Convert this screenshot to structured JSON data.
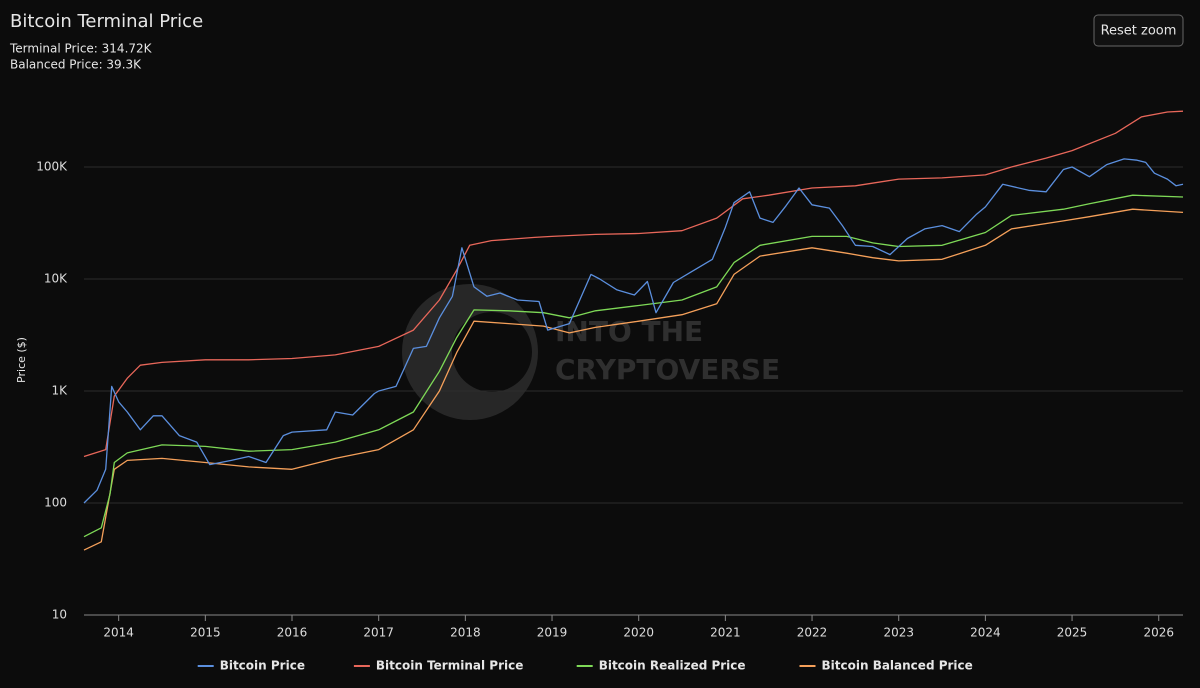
{
  "chart_data": {
    "type": "line",
    "title": "Bitcoin Terminal Price",
    "stats": [
      "Terminal Price: 314.72K",
      "Balanced Price: 39.3K"
    ],
    "button": "Reset zoom",
    "watermark": [
      "INTO THE",
      "CRYPTOVERSE"
    ],
    "y_label": "Price ($)",
    "yscale": "log",
    "grid": true,
    "legend": "bottom",
    "xlim": [
      2013.6,
      2026.28
    ],
    "xticks": [
      2014,
      2015,
      2016,
      2017,
      2018,
      2019,
      2020,
      2021,
      2022,
      2023,
      2024,
      2025,
      2026
    ],
    "ylim": [
      10,
      1000000
    ],
    "yticks": [
      10,
      100,
      {
        "value": 1000,
        "label": "1K"
      },
      {
        "value": 10000,
        "label": "10K"
      },
      {
        "value": 100000,
        "label": "100K"
      }
    ],
    "series": [
      {
        "name": "Bitcoin Price",
        "color": "#5b8fde",
        "x": [
          2013.6,
          2013.75,
          2013.85,
          2013.92,
          2014.0,
          2014.1,
          2014.25,
          2014.4,
          2014.5,
          2014.7,
          2014.9,
          2015.05,
          2015.3,
          2015.5,
          2015.7,
          2015.9,
          2016.0,
          2016.4,
          2016.5,
          2016.7,
          2016.95,
          2017.0,
          2017.2,
          2017.4,
          2017.55,
          2017.7,
          2017.85,
          2017.96,
          2018.1,
          2018.25,
          2018.4,
          2018.6,
          2018.85,
          2018.95,
          2019.2,
          2019.45,
          2019.55,
          2019.75,
          2019.95,
          2020.1,
          2020.2,
          2020.4,
          2020.6,
          2020.85,
          2021.0,
          2021.1,
          2021.28,
          2021.4,
          2021.55,
          2021.7,
          2021.85,
          2022.0,
          2022.2,
          2022.35,
          2022.5,
          2022.7,
          2022.9,
          2023.1,
          2023.3,
          2023.5,
          2023.7,
          2023.9,
          2024.0,
          2024.2,
          2024.5,
          2024.7,
          2024.9,
          2025.0,
          2025.2,
          2025.4,
          2025.6,
          2025.75,
          2025.85,
          2025.95,
          2026.1,
          2026.2,
          2026.28
        ],
        "values": [
          100,
          130,
          200,
          1100,
          800,
          650,
          450,
          600,
          600,
          400,
          350,
          220,
          240,
          260,
          230,
          400,
          430,
          450,
          650,
          610,
          950,
          1000,
          1100,
          2400,
          2500,
          4500,
          7000,
          19000,
          8500,
          7000,
          7500,
          6500,
          6300,
          3500,
          4000,
          11000,
          10000,
          8000,
          7200,
          9500,
          5000,
          9300,
          11500,
          15000,
          29000,
          48000,
          60000,
          35000,
          32000,
          45000,
          65000,
          46000,
          43000,
          30000,
          20000,
          19500,
          16500,
          23000,
          28000,
          30000,
          26500,
          38000,
          44000,
          70000,
          62000,
          60000,
          95000,
          100000,
          82000,
          105000,
          118000,
          115000,
          110000,
          88000,
          78000,
          68000,
          70000
        ]
      },
      {
        "name": "Bitcoin Terminal Price",
        "color": "#e8675a",
        "x": [
          2013.6,
          2013.85,
          2013.95,
          2014.1,
          2014.25,
          2014.5,
          2015.0,
          2015.5,
          2016.0,
          2016.5,
          2017.0,
          2017.4,
          2017.7,
          2017.9,
          2018.05,
          2018.3,
          2018.8,
          2019.0,
          2019.5,
          2020.0,
          2020.5,
          2020.9,
          2021.2,
          2021.5,
          2022.0,
          2022.5,
          2023.0,
          2023.5,
          2024.0,
          2024.3,
          2024.7,
          2025.0,
          2025.5,
          2025.8,
          2026.1,
          2026.28
        ],
        "values": [
          260,
          300,
          900,
          1300,
          1700,
          1800,
          1900,
          1900,
          1950,
          2100,
          2500,
          3500,
          6500,
          12000,
          20000,
          22000,
          23500,
          24000,
          25000,
          25500,
          27000,
          35000,
          52000,
          56000,
          65000,
          68000,
          78000,
          80000,
          85000,
          100000,
          120000,
          140000,
          200000,
          280000,
          310000,
          314720
        ]
      },
      {
        "name": "Bitcoin Realized Price",
        "color": "#7ed957",
        "x": [
          2013.6,
          2013.8,
          2013.9,
          2013.95,
          2014.1,
          2014.5,
          2015.0,
          2015.5,
          2016.0,
          2016.5,
          2017.0,
          2017.4,
          2017.7,
          2017.9,
          2018.1,
          2018.5,
          2018.9,
          2019.2,
          2019.5,
          2020.0,
          2020.5,
          2020.9,
          2021.1,
          2021.4,
          2022.0,
          2022.4,
          2022.7,
          2023.0,
          2023.5,
          2024.0,
          2024.3,
          2024.9,
          2025.2,
          2025.7,
          2026.28
        ],
        "values": [
          50,
          60,
          120,
          230,
          280,
          330,
          320,
          290,
          300,
          350,
          450,
          650,
          1500,
          3000,
          5300,
          5200,
          5000,
          4500,
          5200,
          5800,
          6500,
          8500,
          14000,
          20000,
          24000,
          24000,
          21000,
          19500,
          20000,
          26000,
          37000,
          42000,
          47000,
          56000,
          54000
        ]
      },
      {
        "name": "Bitcoin Balanced Price",
        "color": "#f5a05a",
        "x": [
          2013.6,
          2013.8,
          2013.95,
          2014.1,
          2014.5,
          2015.0,
          2015.5,
          2016.0,
          2016.5,
          2017.0,
          2017.4,
          2017.7,
          2017.9,
          2018.1,
          2018.5,
          2018.9,
          2019.2,
          2019.5,
          2020.0,
          2020.5,
          2020.9,
          2021.1,
          2021.4,
          2022.0,
          2022.4,
          2022.7,
          2023.0,
          2023.5,
          2024.0,
          2024.3,
          2024.9,
          2025.2,
          2025.7,
          2026.28
        ],
        "values": [
          38,
          45,
          200,
          240,
          250,
          230,
          210,
          200,
          250,
          300,
          450,
          1000,
          2200,
          4200,
          4000,
          3800,
          3300,
          3700,
          4200,
          4800,
          6000,
          11000,
          16000,
          19000,
          17000,
          15500,
          14500,
          15000,
          20000,
          28000,
          33000,
          36000,
          42000,
          39300
        ]
      }
    ]
  }
}
